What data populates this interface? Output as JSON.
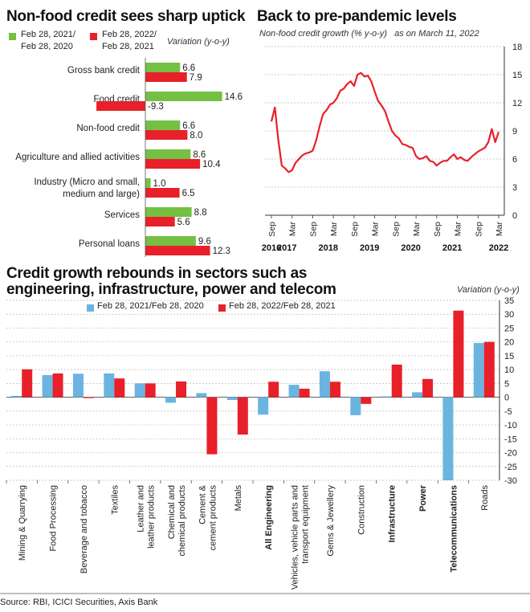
{
  "colors": {
    "green": "#74c043",
    "red": "#e8202a",
    "blue": "#6bb4e0",
    "line": "#e8202a",
    "grid": "#bbbbbb"
  },
  "chart_data": [
    {
      "type": "bar",
      "title": "Non-food credit sees sharp uptick",
      "subtitle": "Variation (y-o-y)",
      "series": [
        {
          "name": "Feb 28, 2021/ Feb 28, 2020",
          "values": [
            6.6,
            14.6,
            6.6,
            8.6,
            1.0,
            8.8,
            9.6
          ]
        },
        {
          "name": "Feb 28, 2022/ Feb 28, 2021",
          "values": [
            7.9,
            -9.3,
            8.0,
            10.4,
            6.5,
            5.6,
            12.3
          ]
        }
      ],
      "categories": [
        "Gross bank credit",
        "Food credit",
        "Non-food credit",
        "Agriculture and allied activities",
        "Industry (Micro and small, medium and large)",
        "Services",
        "Personal loans"
      ],
      "orientation": "horizontal"
    },
    {
      "type": "line",
      "title": "Back to pre-pandemic levels",
      "subtitle": "Non-food credit growth (% y-o-y)   as on March 11, 2022",
      "ylim": [
        0,
        18
      ],
      "yticks": [
        0,
        3,
        6,
        9,
        12,
        15,
        18
      ],
      "xticks": [
        "Sep",
        "Mar",
        "Sep",
        "Mar",
        "Sep",
        "Mar",
        "Sep",
        "Mar",
        "Sep",
        "Mar",
        "Sep",
        "Mar"
      ],
      "years": [
        "2016",
        "2017",
        "2018",
        "2019",
        "2020",
        "2021",
        "2022"
      ],
      "x": [
        "2016-09",
        "2016-10",
        "2016-11",
        "2016-12",
        "2017-01",
        "2017-02",
        "2017-03",
        "2017-04",
        "2017-05",
        "2017-06",
        "2017-07",
        "2017-08",
        "2017-09",
        "2017-10",
        "2017-11",
        "2017-12",
        "2018-01",
        "2018-02",
        "2018-03",
        "2018-04",
        "2018-05",
        "2018-06",
        "2018-07",
        "2018-08",
        "2018-09",
        "2018-10",
        "2018-11",
        "2018-12",
        "2019-01",
        "2019-02",
        "2019-03",
        "2019-04",
        "2019-05",
        "2019-06",
        "2019-07",
        "2019-08",
        "2019-09",
        "2019-10",
        "2019-11",
        "2019-12",
        "2020-01",
        "2020-02",
        "2020-03",
        "2020-04",
        "2020-05",
        "2020-06",
        "2020-07",
        "2020-08",
        "2020-09",
        "2020-10",
        "2020-11",
        "2020-12",
        "2021-01",
        "2021-02",
        "2021-03",
        "2021-04",
        "2021-05",
        "2021-06",
        "2021-07",
        "2021-08",
        "2021-09",
        "2021-10",
        "2021-11",
        "2021-12",
        "2022-01",
        "2022-02",
        "2022-03"
      ],
      "y": [
        10.0,
        11.5,
        8.0,
        5.3,
        5.0,
        4.6,
        4.8,
        5.6,
        6.0,
        6.4,
        6.6,
        6.7,
        6.9,
        8.0,
        9.5,
        10.8,
        11.2,
        11.8,
        12.0,
        12.5,
        13.3,
        13.5,
        14.0,
        14.3,
        13.8,
        15.0,
        15.2,
        14.8,
        14.9,
        14.3,
        13.2,
        12.2,
        11.7,
        11.1,
        10.0,
        9.0,
        8.5,
        8.2,
        7.6,
        7.5,
        7.3,
        7.2,
        6.3,
        6.0,
        6.1,
        6.3,
        5.8,
        5.7,
        5.3,
        5.6,
        5.8,
        5.8,
        6.2,
        6.5,
        6.0,
        6.2,
        5.9,
        5.8,
        6.2,
        6.5,
        6.8,
        7.0,
        7.2,
        7.8,
        9.2,
        7.8,
        8.9
      ]
    },
    {
      "type": "bar",
      "title": "Credit growth rebounds in sectors such as engineering, infrastructure, power and telecom",
      "subtitle": "Variation (y-o-y)",
      "ylim": [
        -30,
        35
      ],
      "yticks": [
        35,
        30,
        25,
        20,
        15,
        10,
        5,
        0,
        -5,
        -10,
        -15,
        -20,
        -25,
        -30
      ],
      "categories": [
        "Mining & Quarrying",
        "Food Processing",
        "Beverage and tobacco",
        "Textiles",
        "Leather and leather products",
        "Chemical and chemical products",
        "Cement & cement products",
        "Metals",
        "All Engineering",
        "Vehicles, vehicle parts and transport equipment",
        "Gems & Jewellery",
        "Construction",
        "Infrastructure",
        "Power",
        "Telecommunications",
        "Roads"
      ],
      "category_lines": [
        [
          "Mining & Quarrying"
        ],
        [
          "Food Processing"
        ],
        [
          "Beverage and tobacco"
        ],
        [
          "Textiles"
        ],
        [
          "Leather and",
          "leather products"
        ],
        [
          "Chemical and",
          "chemical products"
        ],
        [
          "Cement &",
          "cement products"
        ],
        [
          "Metals"
        ],
        [
          "All Engineering"
        ],
        [
          "Vehicles, vehicle parts and",
          "transport equipment"
        ],
        [
          "Gems & Jewellery"
        ],
        [
          "Construction"
        ],
        [
          "Infrastructure"
        ],
        [
          "Power"
        ],
        [
          "Telecommunications"
        ],
        [
          "Roads"
        ]
      ],
      "bold_categories": [
        "All Engineering",
        "Infrastructure",
        "Power",
        "Telecommunications"
      ],
      "series": [
        {
          "name": "Feb 28, 2021/Feb 28, 2020",
          "values": [
            0.5,
            8.0,
            8.5,
            8.6,
            5.0,
            -2.0,
            1.5,
            -1.0,
            -6.3,
            4.5,
            9.4,
            -6.5,
            0.3,
            1.8,
            -30.0,
            19.6
          ]
        },
        {
          "name": "Feb 28, 2022/Feb 28, 2021",
          "values": [
            10.1,
            8.6,
            -0.3,
            6.8,
            5.0,
            5.7,
            -20.6,
            -13.5,
            5.6,
            3.1,
            5.6,
            -2.4,
            11.8,
            6.6,
            31.3,
            20.0
          ]
        }
      ]
    }
  ],
  "source": "Source: RBI, ICICI Securities, Axis Bank"
}
